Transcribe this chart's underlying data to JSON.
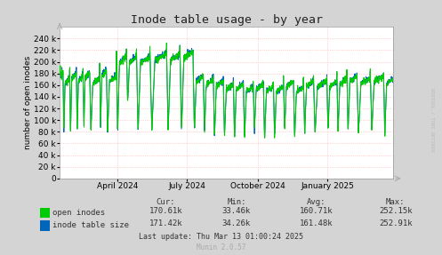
{
  "title": "Inode table usage - by year",
  "ylabel": "number of open inodes",
  "xlabel_ticks": [
    "April 2024",
    "July 2024",
    "October 2024",
    "January 2025"
  ],
  "ylim": [
    0,
    260000
  ],
  "yticks": [
    0,
    20000,
    40000,
    60000,
    80000,
    100000,
    120000,
    140000,
    160000,
    180000,
    200000,
    220000,
    240000
  ],
  "bg_color": "#d4d4d4",
  "plot_bg_color": "#ffffff",
  "grid_color": "#ffaaaa",
  "line_color_green": "#00cc00",
  "line_color_blue": "#0066bb",
  "legend_labels": [
    "open inodes",
    "inode table size"
  ],
  "legend_cur": [
    "170.61k",
    "171.42k"
  ],
  "legend_min": [
    "33.46k",
    "34.26k"
  ],
  "legend_avg": [
    "160.71k",
    "161.48k"
  ],
  "legend_max": [
    "252.15k",
    "252.91k"
  ],
  "footer_lastupdate": "Last update: Thu Mar 13 01:00:24 2025",
  "footer_munin": "Munin 2.0.57",
  "rrdtool_label": "RRDTOOL / TOBI OETIKER",
  "title_fontsize": 9.5,
  "axis_fontsize": 6.5,
  "legend_fontsize": 6.5,
  "footer_fontsize": 6
}
